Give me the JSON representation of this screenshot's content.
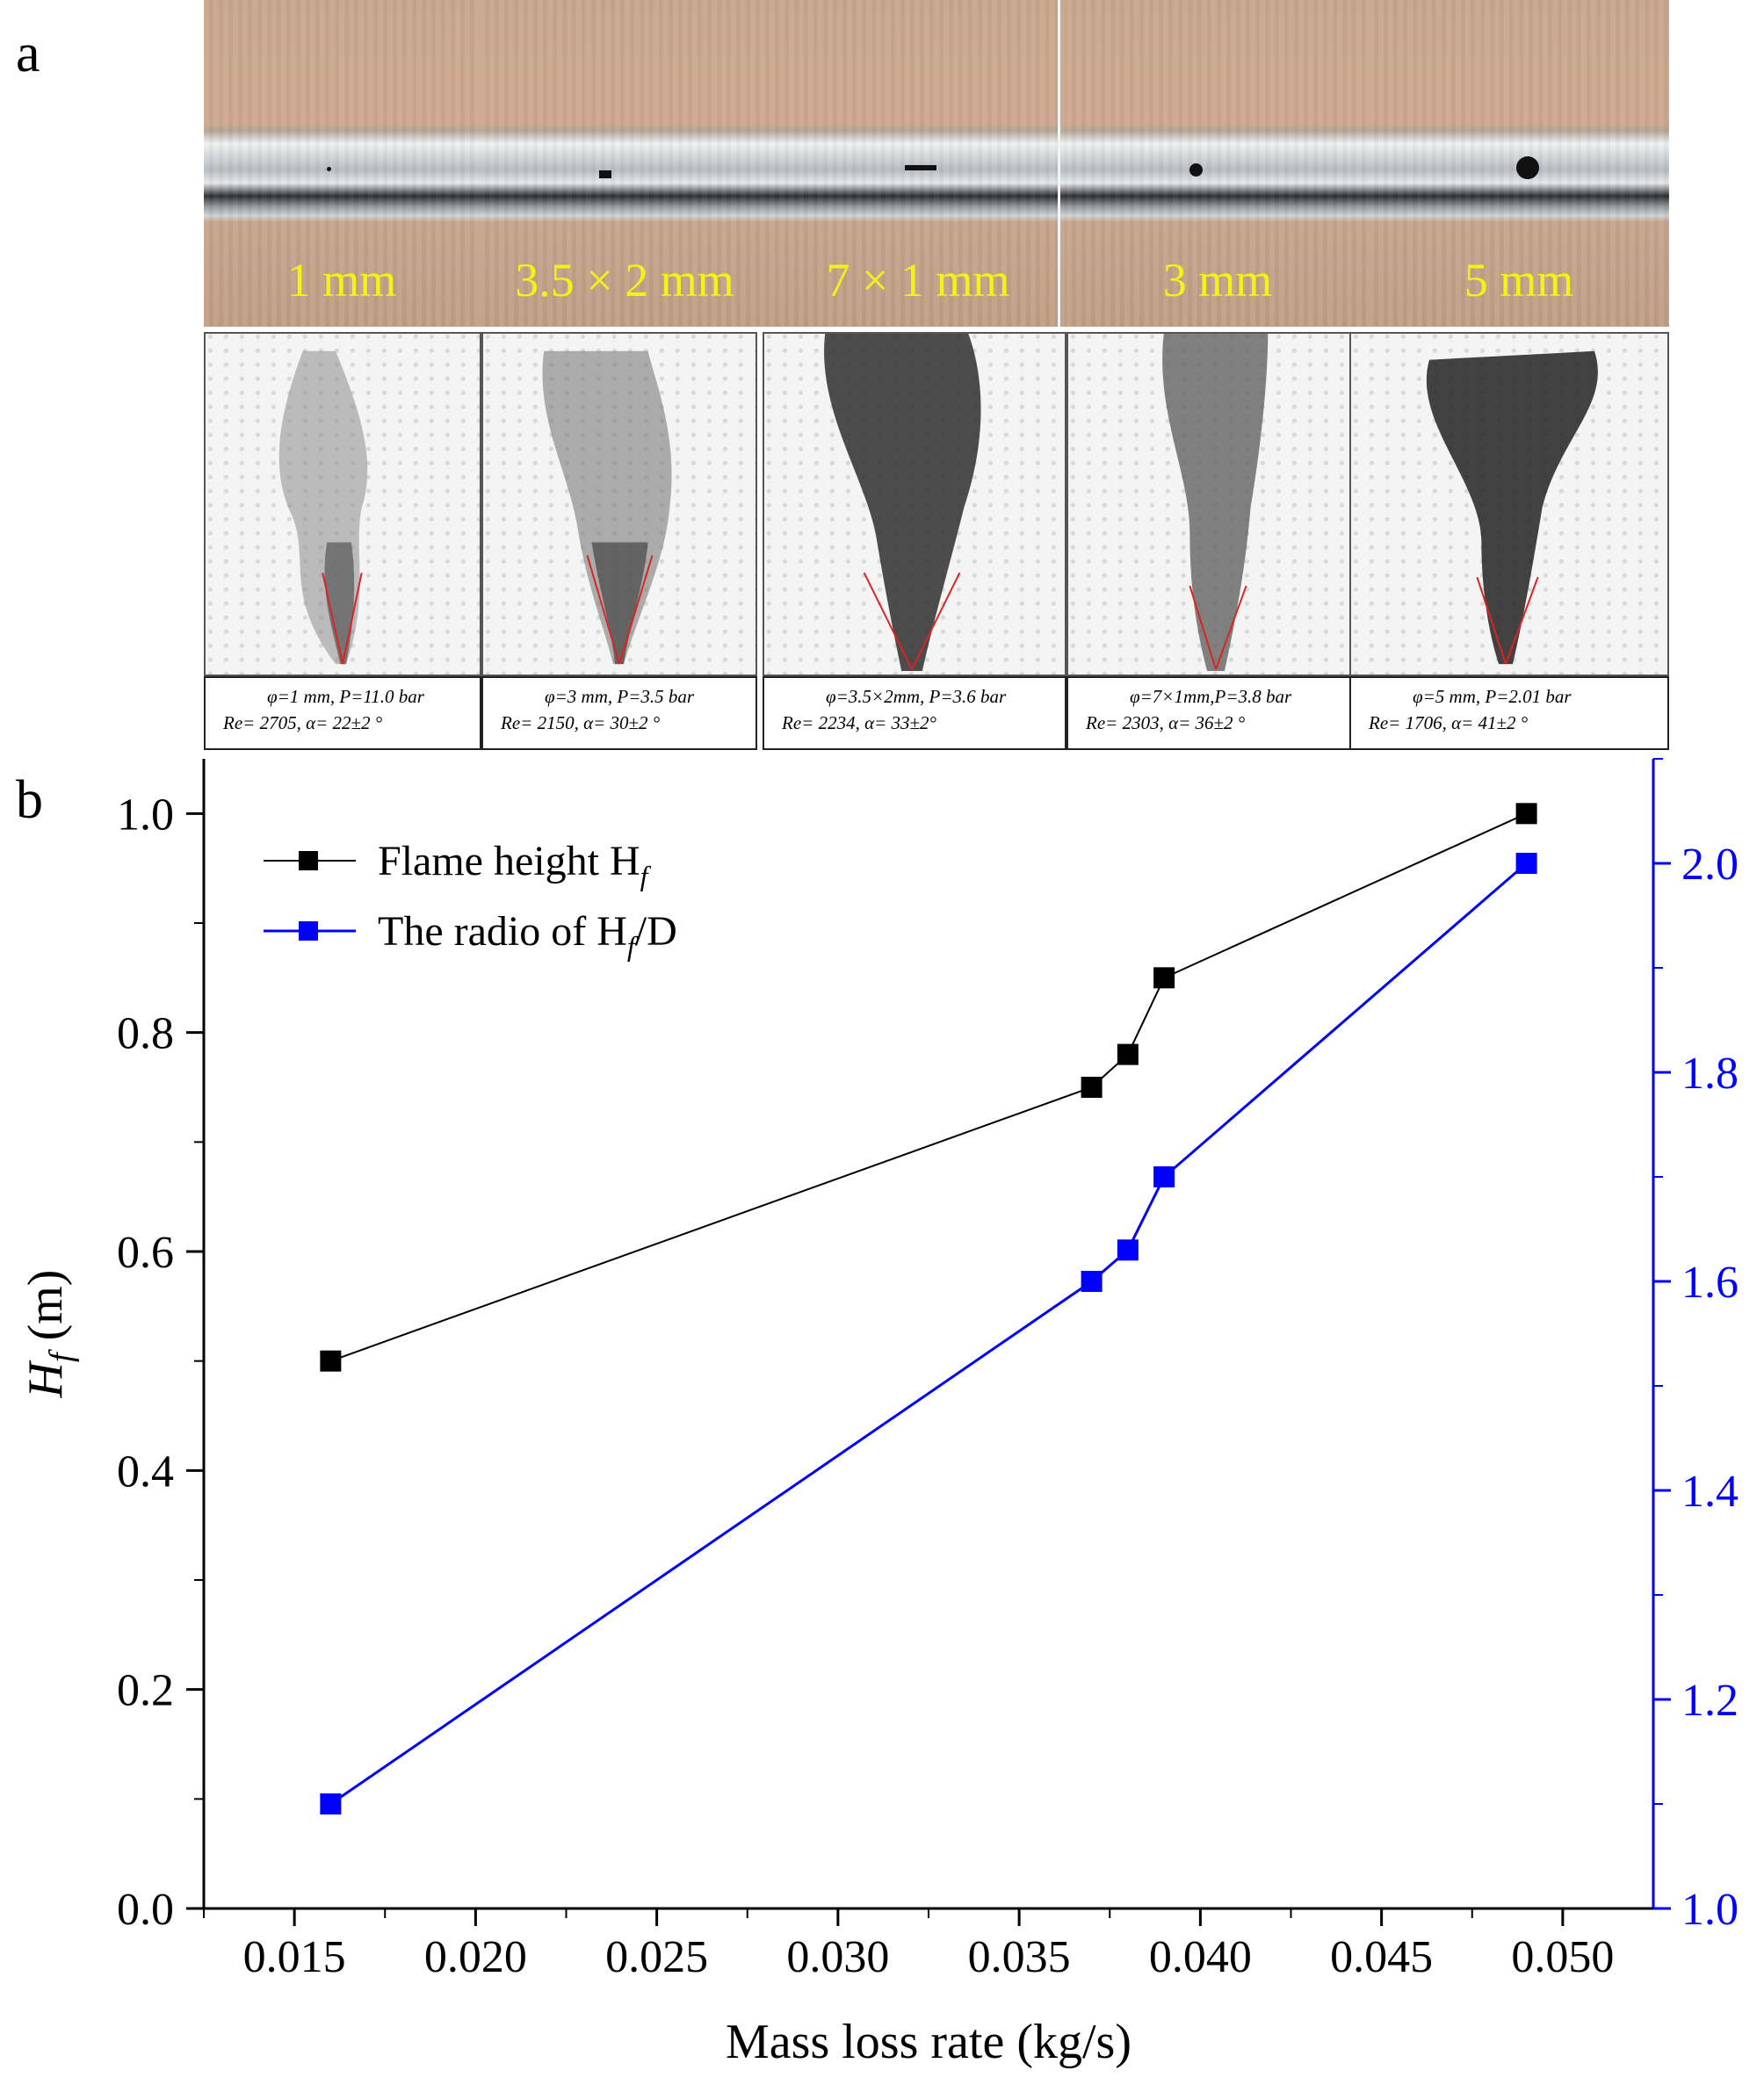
{
  "panel_labels": {
    "a": "a",
    "b": "b"
  },
  "orifice_labels": [
    "1 mm",
    "3.5 × 2 mm",
    "7 × 1 mm",
    "3 mm",
    "5 mm"
  ],
  "flame_captions": [
    {
      "line1": "φ=1 mm, P=11.0 bar",
      "line2": "Re= 2705, α= 22±2 °"
    },
    {
      "line1": "φ=3 mm, P=3.5 bar",
      "line2": "Re= 2150,  α= 30±2 °"
    },
    {
      "line1": "φ=3.5×2mm, P=3.6 bar",
      "line2": "Re= 2234,  α= 33±2°"
    },
    {
      "line1": "φ=7×1mm,P=3.8 bar",
      "line2": "Re= 2303,  α= 36±2 °"
    },
    {
      "line1": "φ=5 mm, P=2.01 bar",
      "line2": "Re= 1706,  α= 41±2 °"
    }
  ],
  "colors": {
    "flame_height": "#000000",
    "ratio": "#0000ff",
    "label_yellow": "#f5f218"
  },
  "chart_data": {
    "type": "line",
    "xlabel": "Mass loss rate (kg/s)",
    "ylabel": "Hf (m)",
    "ylabel_parts": {
      "main": "H",
      "sub": "f",
      "unit": " (m)"
    },
    "xlim": [
      0.0125,
      0.0525
    ],
    "ylim": [
      0.0,
      1.05
    ],
    "y2lim": [
      1.0,
      2.1
    ],
    "x_ticks": [
      "0.015",
      "0.020",
      "0.025",
      "0.030",
      "0.035",
      "0.040",
      "0.045",
      "0.050"
    ],
    "y_ticks": [
      "0.0",
      "0.2",
      "0.4",
      "0.6",
      "0.8",
      "1.0"
    ],
    "y2_ticks": [
      "1.0",
      "1.2",
      "1.4",
      "1.6",
      "1.8",
      "2.0"
    ],
    "legend_position": "top-left",
    "legend": [
      {
        "text": "Flame height H",
        "sub": "f"
      },
      {
        "text": "The radio of H",
        "sub": "f",
        "tail": "/D"
      }
    ],
    "x": [
      0.016,
      0.037,
      0.038,
      0.039,
      0.049
    ],
    "series": [
      {
        "axis": "left",
        "values": [
          0.5,
          0.75,
          0.78,
          0.85,
          1.0
        ]
      },
      {
        "axis": "right",
        "values": [
          1.1,
          1.6,
          1.63,
          1.7,
          2.0
        ]
      }
    ]
  }
}
